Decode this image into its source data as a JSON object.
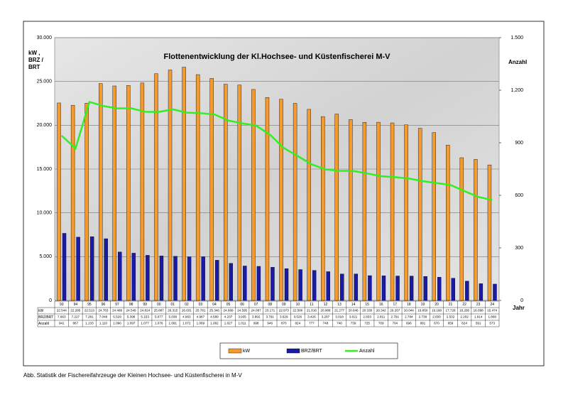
{
  "chart_data": {
    "type": "bar",
    "title": "Flottenentwicklung der Kl.Hochsee- und Küstenfischerei M-V",
    "ylabel": "kW , BRZ / BRT",
    "y2label": "Anzahl",
    "xlabel": "Jahr",
    "categories": [
      "93",
      "94",
      "95",
      "96",
      "97",
      "98",
      "99",
      "00",
      "01",
      "02",
      "03",
      "04",
      "05",
      "06",
      "07",
      "08",
      "09",
      "10",
      "11",
      "12",
      "13",
      "14",
      "15",
      "16",
      "17",
      "18",
      "19",
      "20",
      "21",
      "22",
      "23",
      "24"
    ],
    "series": [
      {
        "name": "kW",
        "color": "#f59a2e",
        "type": "bar",
        "values": [
          22544,
          22285,
          22513,
          24763,
          24488,
          24549,
          24824,
          25887,
          26315,
          26631,
          25781,
          25346,
          24689,
          24595,
          24087,
          23171,
          22973,
          22500,
          21816,
          20988,
          21277,
          20646,
          20330,
          20342,
          20267,
          20044,
          19650,
          19168,
          17728,
          16295,
          16098,
          15474
        ],
        "value_labels": [
          "22.544",
          "22.285",
          "22.513",
          "24.763",
          "24.488",
          "24.549",
          "24.824",
          "25.887",
          "26.315",
          "26.631",
          "25.781",
          "25.346",
          "24.689",
          "24.595",
          "24.087",
          "23.171",
          "22.973",
          "22.500",
          "21.816",
          "20.988",
          "21.277",
          "20.646",
          "20.330",
          "20.342",
          "20.267",
          "20.044",
          "19.650",
          "19.168",
          "17.728",
          "16.295",
          "16.098",
          "15.474"
        ]
      },
      {
        "name": "BRZ/BRT",
        "color": "#1a1aa6",
        "type": "bar",
        "values": [
          7663,
          7227,
          7281,
          7048,
          5529,
          5398,
          5153,
          5077,
          5038,
          4963,
          4987,
          4589,
          4237,
          3935,
          3892,
          3791,
          3629,
          3526,
          3426,
          3287,
          3018,
          3021,
          2833,
          2811,
          2791,
          2784,
          2738,
          2650,
          2532,
          2202,
          1914,
          1868
        ],
        "value_labels": [
          "7.663",
          "7.227",
          "7.281",
          "7.048",
          "5.529",
          "5.398",
          "5.153",
          "5.077",
          "5.038",
          "4.963",
          "4.987",
          "4.589",
          "4.237",
          "3.935",
          "3.892",
          "3.791",
          "3.629",
          "3.526",
          "3.426",
          "3.287",
          "3.018",
          "3.021",
          "2.833",
          "2.811",
          "2.791",
          "2.784",
          "2.738",
          "2.650",
          "2.532",
          "2.202",
          "1.914",
          "1.868"
        ]
      },
      {
        "name": "Anzahl",
        "color": "#33ee22",
        "type": "line",
        "axis": "y2",
        "values": [
          941,
          867,
          1133,
          1110,
          1096,
          1097,
          1077,
          1076,
          1091,
          1072,
          1069,
          1062,
          1027,
          1011,
          998,
          946,
          870,
          824,
          777,
          748,
          740,
          739,
          725,
          709,
          704,
          696,
          681,
          670,
          659,
          624,
          591,
          573
        ],
        "value_labels": [
          "941",
          "867",
          "1.133",
          "1.110",
          "1.096",
          "1.097",
          "1.077",
          "1.076",
          "1.091",
          "1.072",
          "1.069",
          "1.062",
          "1.027",
          "1.011",
          "998",
          "946",
          "870",
          "824",
          "777",
          "748",
          "740",
          "739",
          "725",
          "709",
          "704",
          "696",
          "681",
          "670",
          "659",
          "624",
          "591",
          "573"
        ]
      }
    ],
    "ylim": [
      0,
      30000
    ],
    "yticks": [
      0,
      {
        "value": 5000,
        "label": "5.000"
      },
      {
        "value": 10000,
        "label": "10.000"
      },
      {
        "value": 15000,
        "label": "15.000"
      },
      {
        "value": 20000,
        "label": "20.000"
      },
      {
        "value": 25000,
        "label": "25.000"
      },
      {
        "value": 30000,
        "label": "30.000"
      }
    ],
    "y2lim": [
      0,
      1500
    ],
    "y2ticks": [
      0,
      300,
      600,
      900,
      {
        "value": 1200,
        "label": "1.200"
      },
      {
        "value": 1500,
        "label": "1.500"
      }
    ],
    "grid": true
  },
  "caption": "Abb. Statistik der Fischereifahrzeuge der Kleinen Hochsee- und Küstenfischerei in M-V"
}
